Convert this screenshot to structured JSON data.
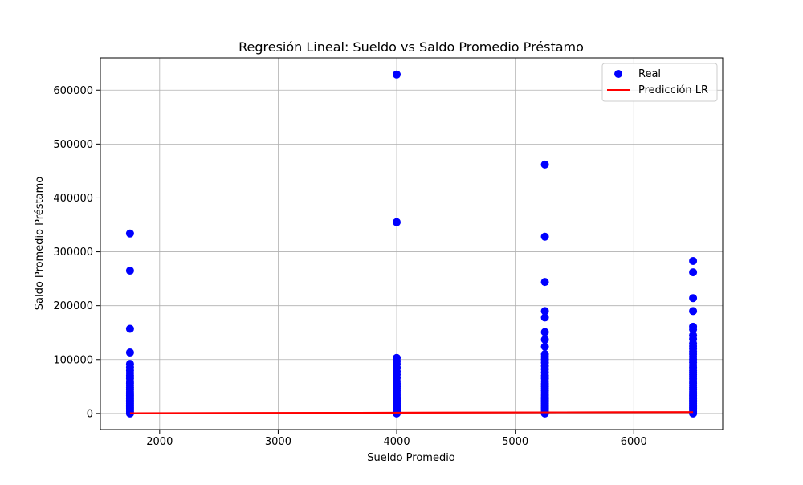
{
  "chart_data": {
    "type": "scatter",
    "title": "Regresión Lineal: Sueldo vs Saldo Promedio Préstamo",
    "xlabel": "Sueldo Promedio",
    "ylabel": "Saldo Promedio Préstamo",
    "xlim": [
      1500,
      6750
    ],
    "ylim": [
      -30000,
      660000
    ],
    "xticks": [
      2000,
      3000,
      4000,
      5000,
      6000
    ],
    "yticks": [
      0,
      100000,
      200000,
      300000,
      400000,
      500000,
      600000
    ],
    "grid": true,
    "legend_position": "top-right",
    "series": [
      {
        "name": "Real",
        "kind": "scatter",
        "color": "#0000ff",
        "points": [
          [
            1750,
            0
          ],
          [
            1750,
            3000
          ],
          [
            1750,
            6000
          ],
          [
            1750,
            9000
          ],
          [
            1750,
            12000
          ],
          [
            1750,
            15000
          ],
          [
            1750,
            18000
          ],
          [
            1750,
            21000
          ],
          [
            1750,
            24000
          ],
          [
            1750,
            27000
          ],
          [
            1750,
            30000
          ],
          [
            1750,
            33000
          ],
          [
            1750,
            36000
          ],
          [
            1750,
            40000
          ],
          [
            1750,
            44000
          ],
          [
            1750,
            48000
          ],
          [
            1750,
            52000
          ],
          [
            1750,
            56000
          ],
          [
            1750,
            60000
          ],
          [
            1750,
            65000
          ],
          [
            1750,
            70000
          ],
          [
            1750,
            75000
          ],
          [
            1750,
            80000
          ],
          [
            1750,
            86000
          ],
          [
            1750,
            92000
          ],
          [
            1750,
            113000
          ],
          [
            1750,
            157000
          ],
          [
            1750,
            265000
          ],
          [
            1750,
            334000
          ],
          [
            4000,
            0
          ],
          [
            4000,
            3000
          ],
          [
            4000,
            6000
          ],
          [
            4000,
            9000
          ],
          [
            4000,
            12000
          ],
          [
            4000,
            15000
          ],
          [
            4000,
            18000
          ],
          [
            4000,
            21000
          ],
          [
            4000,
            24000
          ],
          [
            4000,
            27000
          ],
          [
            4000,
            30000
          ],
          [
            4000,
            34000
          ],
          [
            4000,
            38000
          ],
          [
            4000,
            42000
          ],
          [
            4000,
            46000
          ],
          [
            4000,
            50000
          ],
          [
            4000,
            55000
          ],
          [
            4000,
            60000
          ],
          [
            4000,
            66000
          ],
          [
            4000,
            72000
          ],
          [
            4000,
            78000
          ],
          [
            4000,
            85000
          ],
          [
            4000,
            92000
          ],
          [
            4000,
            97000
          ],
          [
            4000,
            103000
          ],
          [
            4000,
            355000
          ],
          [
            4000,
            629000
          ],
          [
            5250,
            0
          ],
          [
            5250,
            3000
          ],
          [
            5250,
            6000
          ],
          [
            5250,
            9000
          ],
          [
            5250,
            12000
          ],
          [
            5250,
            15000
          ],
          [
            5250,
            18000
          ],
          [
            5250,
            21000
          ],
          [
            5250,
            24000
          ],
          [
            5250,
            27000
          ],
          [
            5250,
            30000
          ],
          [
            5250,
            34000
          ],
          [
            5250,
            38000
          ],
          [
            5250,
            42000
          ],
          [
            5250,
            46000
          ],
          [
            5250,
            50000
          ],
          [
            5250,
            55000
          ],
          [
            5250,
            60000
          ],
          [
            5250,
            65000
          ],
          [
            5250,
            70000
          ],
          [
            5250,
            76000
          ],
          [
            5250,
            82000
          ],
          [
            5250,
            88000
          ],
          [
            5250,
            94000
          ],
          [
            5250,
            100000
          ],
          [
            5250,
            105000
          ],
          [
            5250,
            110000
          ],
          [
            5250,
            124000
          ],
          [
            5250,
            137000
          ],
          [
            5250,
            151000
          ],
          [
            5250,
            178000
          ],
          [
            5250,
            190000
          ],
          [
            5250,
            244000
          ],
          [
            5250,
            328000
          ],
          [
            5250,
            462000
          ],
          [
            6500,
            0
          ],
          [
            6500,
            3000
          ],
          [
            6500,
            6000
          ],
          [
            6500,
            9000
          ],
          [
            6500,
            12000
          ],
          [
            6500,
            15000
          ],
          [
            6500,
            18000
          ],
          [
            6500,
            21000
          ],
          [
            6500,
            24000
          ],
          [
            6500,
            27000
          ],
          [
            6500,
            30000
          ],
          [
            6500,
            33000
          ],
          [
            6500,
            36000
          ],
          [
            6500,
            40000
          ],
          [
            6500,
            44000
          ],
          [
            6500,
            48000
          ],
          [
            6500,
            52000
          ],
          [
            6500,
            56000
          ],
          [
            6500,
            60000
          ],
          [
            6500,
            64000
          ],
          [
            6500,
            68000
          ],
          [
            6500,
            72000
          ],
          [
            6500,
            76000
          ],
          [
            6500,
            80000
          ],
          [
            6500,
            85000
          ],
          [
            6500,
            90000
          ],
          [
            6500,
            95000
          ],
          [
            6500,
            100000
          ],
          [
            6500,
            105000
          ],
          [
            6500,
            110000
          ],
          [
            6500,
            115000
          ],
          [
            6500,
            120000
          ],
          [
            6500,
            125000
          ],
          [
            6500,
            130000
          ],
          [
            6500,
            138000
          ],
          [
            6500,
            145000
          ],
          [
            6500,
            156000
          ],
          [
            6500,
            161000
          ],
          [
            6500,
            190000
          ],
          [
            6500,
            214000
          ],
          [
            6500,
            262000
          ],
          [
            6500,
            283000
          ]
        ]
      },
      {
        "name": "Predicción LR",
        "kind": "line",
        "color": "#ff0000",
        "points": [
          [
            1750,
            500
          ],
          [
            6500,
            2500
          ]
        ]
      }
    ]
  }
}
